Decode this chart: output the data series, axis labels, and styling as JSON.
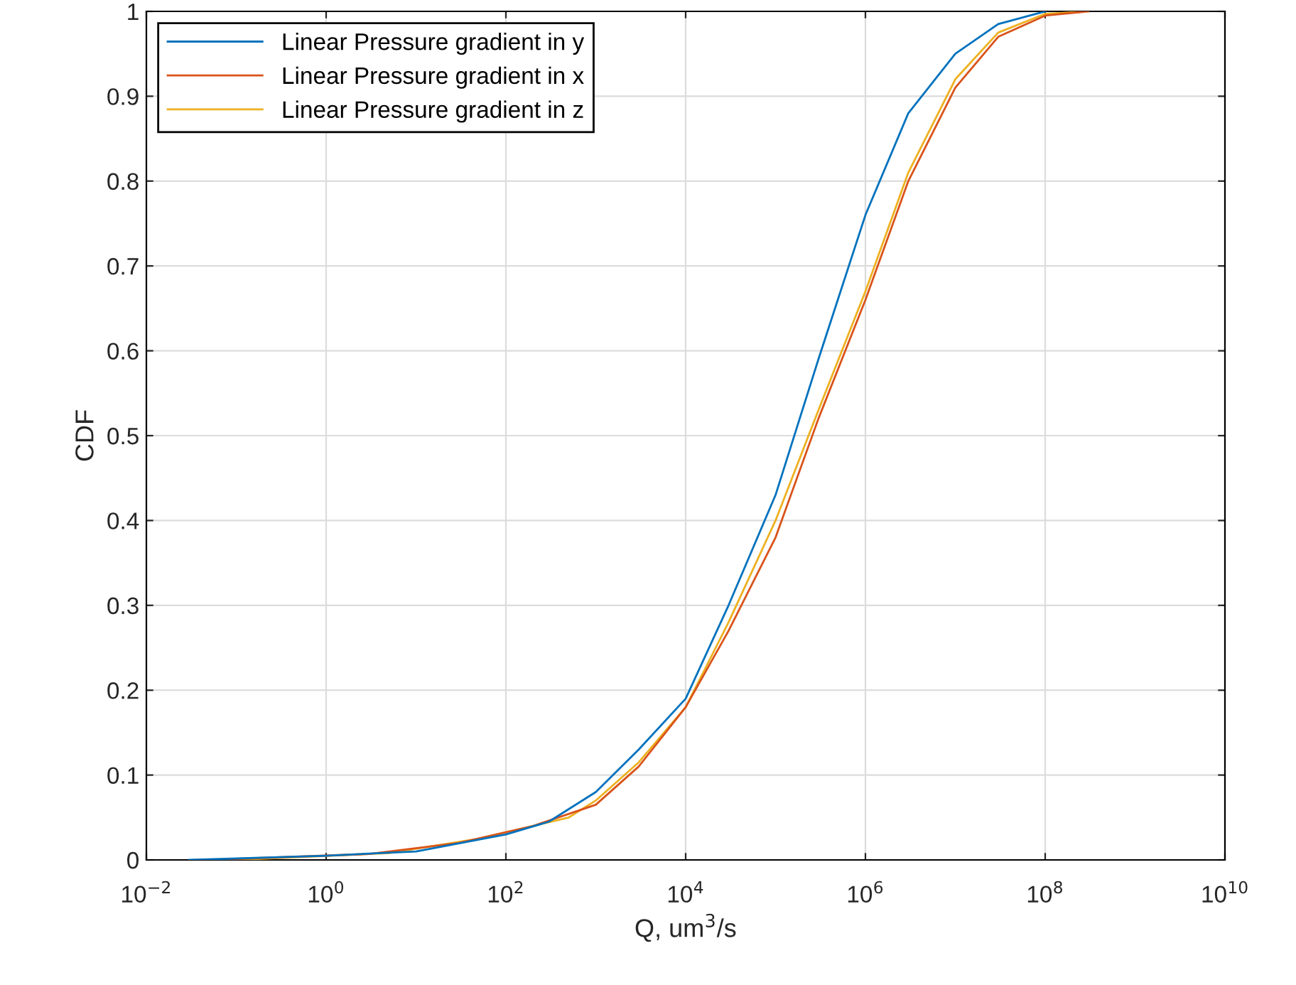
{
  "chart_data": {
    "type": "line",
    "xlabel": "Q, um$^{3}$/s",
    "ylabel": "CDF",
    "log": "x",
    "grid": true,
    "legend": "top left",
    "line_style": "solid",
    "marker": "none",
    "xlim": [
      0.01,
      10000000000
    ],
    "ylim": [
      0,
      1
    ],
    "xticks": [
      {
        "value": 0.01,
        "label": "10$^{−2}$"
      },
      {
        "value": 1,
        "label": "10$^{0}$"
      },
      {
        "value": 100,
        "label": "10$^{2}$"
      },
      {
        "value": 10000,
        "label": "10$^{4}$"
      },
      {
        "value": 1000000,
        "label": "10$^{6}$"
      },
      {
        "value": 100000000,
        "label": "10$^{8}$"
      },
      {
        "value": 10000000000,
        "label": "10$^{10}$"
      }
    ],
    "yticks": [
      0,
      0.1,
      0.2,
      0.3,
      0.4,
      0.5,
      0.6,
      0.7,
      0.8,
      0.9,
      1
    ],
    "series": [
      {
        "name": "Linear Pressure gradient in y",
        "color": "#0072bd",
        "x": [
          0.03,
          1,
          10,
          100,
          300,
          1000,
          3000,
          10000,
          30000,
          100000,
          300000,
          1000000,
          3000000,
          10000000,
          30000000,
          100000000
        ],
        "values": [
          0,
          0.005,
          0.01,
          0.03,
          0.045,
          0.08,
          0.13,
          0.19,
          0.3,
          0.43,
          0.59,
          0.76,
          0.88,
          0.95,
          0.985,
          1
        ]
      },
      {
        "name": "Linear Pressure gradient in x",
        "color": "#d95319",
        "x": [
          0.05,
          3,
          30,
          200,
          1000,
          3000,
          10000,
          30000,
          100000,
          300000,
          1000000,
          3000000,
          10000000,
          30000000,
          100000000,
          300000000
        ],
        "values": [
          0,
          0.007,
          0.02,
          0.04,
          0.065,
          0.11,
          0.18,
          0.27,
          0.38,
          0.52,
          0.66,
          0.8,
          0.91,
          0.97,
          0.995,
          1
        ]
      },
      {
        "name": "Linear Pressure gradient in z",
        "color": "#edb120",
        "x": [
          0.1,
          5,
          50,
          500,
          1000,
          3000,
          10000,
          30000,
          100000,
          300000,
          1000000,
          3000000,
          10000000,
          30000000,
          100000000,
          300000000
        ],
        "values": [
          0,
          0.008,
          0.025,
          0.05,
          0.07,
          0.115,
          0.18,
          0.28,
          0.4,
          0.53,
          0.67,
          0.81,
          0.92,
          0.975,
          0.997,
          1
        ]
      }
    ]
  }
}
